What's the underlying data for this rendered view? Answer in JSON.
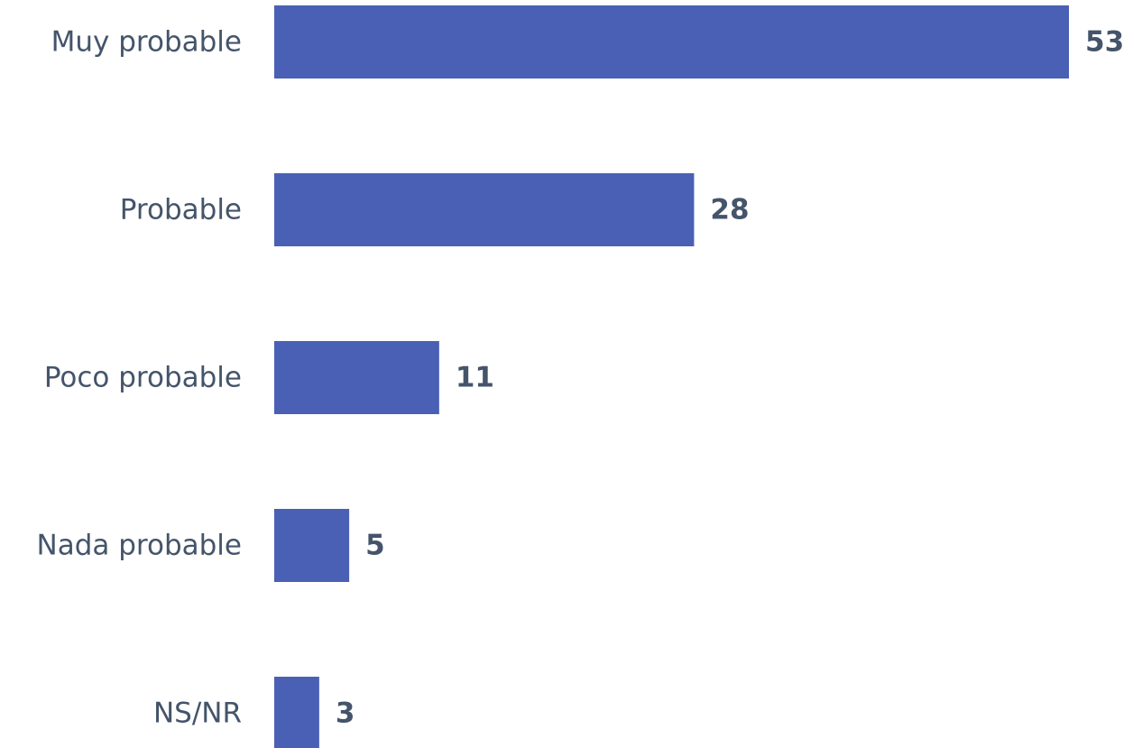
{
  "chart_data": {
    "type": "bar",
    "orientation": "horizontal",
    "categories": [
      "Muy probable",
      "Probable",
      "Poco probable",
      "Nada probable",
      "NS/NR"
    ],
    "values": [
      53,
      28,
      11,
      5,
      3
    ],
    "data_labels": [
      "53",
      "28",
      "11",
      "5",
      "3"
    ],
    "title": "",
    "xlabel": "",
    "ylabel": "",
    "xlim": [
      0,
      53
    ],
    "grid": false,
    "legend": "none",
    "colors": {
      "bar": "#4a60b4",
      "text": "#44546a"
    }
  }
}
